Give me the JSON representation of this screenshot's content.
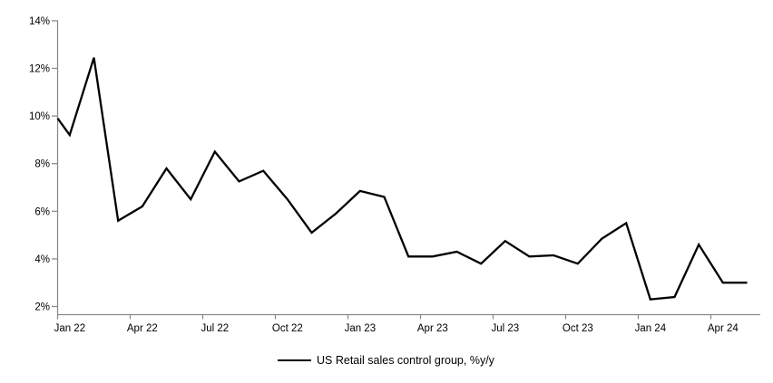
{
  "chart_data": {
    "type": "line",
    "title": "",
    "grid": "off",
    "background_color": "#ffffff",
    "axis_color": "#898989",
    "legend": {
      "label": "US Retail sales control group, %y/y",
      "position": "bottom-center",
      "swatch": "black-line"
    },
    "y_axis": {
      "min": 2,
      "max": 14,
      "tick_step": 2,
      "tick_labels": [
        "14%",
        "12%",
        "10%",
        "8%",
        "6%",
        "4%",
        "2%"
      ],
      "unit": "percent"
    },
    "x_axis": {
      "tick_labels": [
        "Jan 22",
        "Apr 22",
        "Jul 22",
        "Oct 22",
        "Jan 23",
        "Apr 23",
        "Jul 23",
        "Oct 23",
        "Jan 24",
        "Apr 24"
      ],
      "months_per_labeled_tick": 3,
      "mode": "between-tick-marks"
    },
    "series": [
      {
        "name": "US Retail sales control group, %y/y",
        "color": "#000000",
        "line_width": 2.3,
        "entry_value_at_left_axis": 9.9,
        "points": [
          {
            "month": "Jan 22",
            "value": 9.2
          },
          {
            "month": "Feb 22",
            "value": 12.45
          },
          {
            "month": "Mar 22",
            "value": 5.6
          },
          {
            "month": "Apr 22",
            "value": 6.2
          },
          {
            "month": "May 22",
            "value": 7.8
          },
          {
            "month": "Jun 22",
            "value": 6.5
          },
          {
            "month": "Jul 22",
            "value": 8.5
          },
          {
            "month": "Aug 22",
            "value": 7.25
          },
          {
            "month": "Sep 22",
            "value": 7.7
          },
          {
            "month": "Oct 22",
            "value": 6.5
          },
          {
            "month": "Nov 22",
            "value": 5.1
          },
          {
            "month": "Dec 22",
            "value": 5.9
          },
          {
            "month": "Jan 23",
            "value": 6.85
          },
          {
            "month": "Feb 23",
            "value": 6.6
          },
          {
            "month": "Mar 23",
            "value": 4.1
          },
          {
            "month": "Apr 23",
            "value": 4.1
          },
          {
            "month": "May 23",
            "value": 4.3
          },
          {
            "month": "Jun 23",
            "value": 3.8
          },
          {
            "month": "Jul 23",
            "value": 4.75
          },
          {
            "month": "Aug 23",
            "value": 4.1
          },
          {
            "month": "Sep 23",
            "value": 4.15
          },
          {
            "month": "Oct 23",
            "value": 3.8
          },
          {
            "month": "Nov 23",
            "value": 4.85
          },
          {
            "month": "Dec 23",
            "value": 5.5
          },
          {
            "month": "Jan 24",
            "value": 2.3
          },
          {
            "month": "Feb 24",
            "value": 2.4
          },
          {
            "month": "Mar 24",
            "value": 4.6
          },
          {
            "month": "Apr 24",
            "value": 3.0
          },
          {
            "month": "May 24",
            "value": 3.0
          }
        ]
      }
    ]
  }
}
